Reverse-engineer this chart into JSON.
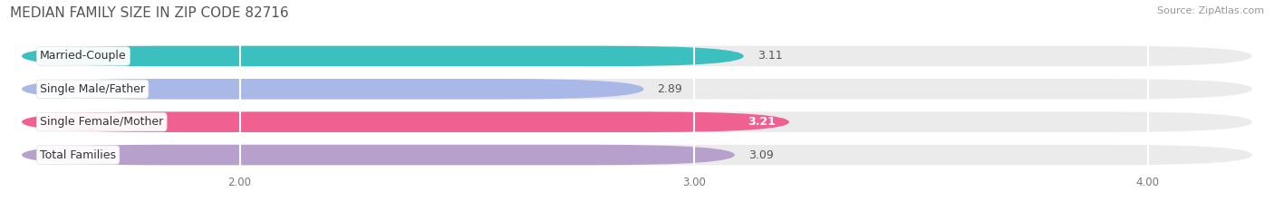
{
  "title": "MEDIAN FAMILY SIZE IN ZIP CODE 82716",
  "source": "Source: ZipAtlas.com",
  "categories": [
    "Married-Couple",
    "Single Male/Father",
    "Single Female/Mother",
    "Total Families"
  ],
  "values": [
    3.11,
    2.89,
    3.21,
    3.09
  ],
  "bar_colors": [
    "#3bbfbf",
    "#aab8e8",
    "#f06090",
    "#b8a0cc"
  ],
  "bar_background": "#ebebeb",
  "xlim_min": 1.5,
  "xlim_max": 4.25,
  "xstart": 1.52,
  "xticks": [
    2.0,
    3.0,
    4.0
  ],
  "xtick_labels": [
    "2.00",
    "3.00",
    "4.00"
  ],
  "value_fontsize": 9,
  "label_fontsize": 9,
  "title_fontsize": 11,
  "source_fontsize": 8,
  "background_color": "#ffffff",
  "value_bold_index": 2
}
